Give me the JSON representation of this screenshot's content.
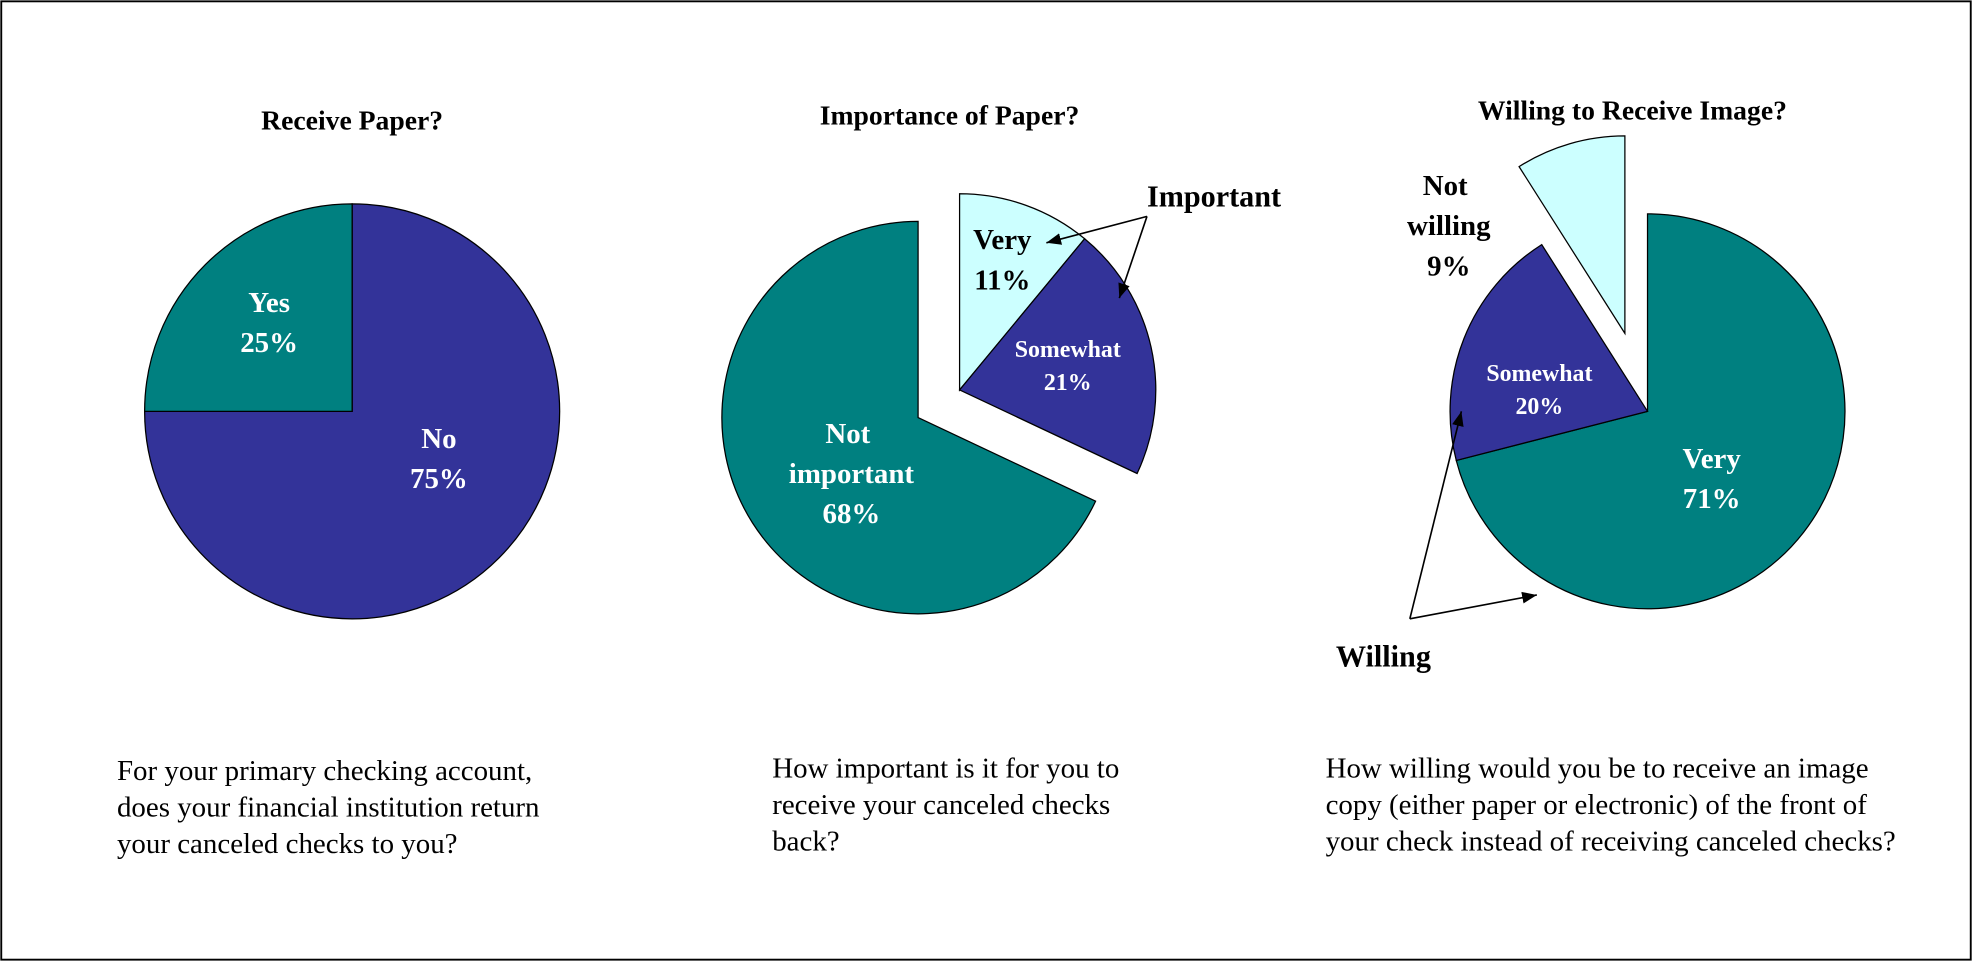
{
  "chart_data": [
    {
      "type": "pie",
      "title": "Receive Paper?",
      "categories": [
        "No",
        "Yes"
      ],
      "values": [
        75,
        25
      ],
      "value_labels": [
        "75%",
        "25%"
      ],
      "colors": [
        "#333399",
        "#008080"
      ],
      "question": "For your primary checking account, does your financial institution return your canceled checks to you?"
    },
    {
      "type": "pie",
      "title": "Importance of Paper?",
      "categories": [
        "Very",
        "Somewhat",
        "Not important"
      ],
      "values": [
        11,
        21,
        68
      ],
      "value_labels": [
        "11%",
        "21%",
        "68%"
      ],
      "colors": [
        "#ccffff",
        "#333399",
        "#008080"
      ],
      "annotation": "Important",
      "question": "How important is it for you to receive your canceled checks back?"
    },
    {
      "type": "pie",
      "title": "Willing to Receive Image?",
      "categories": [
        "Very",
        "Somewhat",
        "Not willing"
      ],
      "values": [
        71,
        20,
        9
      ],
      "value_labels": [
        "71%",
        "20%",
        "9%"
      ],
      "colors": [
        "#008080",
        "#333399",
        "#ccffff"
      ],
      "annotation": "Willing",
      "question": "How willing would you be to receive an image copy (either paper or electronic) of the front of your check instead of receiving canceled checks?"
    }
  ]
}
